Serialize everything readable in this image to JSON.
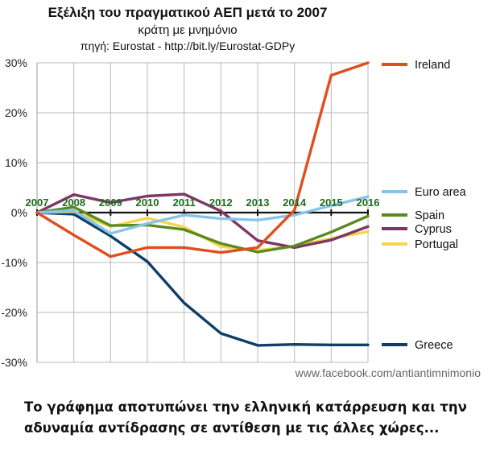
{
  "chart_data": {
    "type": "line",
    "title": "Εξέλιξη του πραγματικού ΑΕΠ μετά το 2007",
    "subtitle": "κράτη με μνημόνιο",
    "source": "πηγή: Eurostat - http://bit.ly/Eurostat-GDPy",
    "watermark": "www.facebook.com/antiantimnimonio",
    "xlabel": "",
    "ylabel": "",
    "x": [
      "2007",
      "2008",
      "2009",
      "2010",
      "2011",
      "2012",
      "2013",
      "2014",
      "2015",
      "2016"
    ],
    "ylim": [
      -30,
      30
    ],
    "yticks": [
      30,
      20,
      10,
      0,
      -10,
      -20,
      -30
    ],
    "ytick_labels": [
      "30%",
      "20%",
      "10%",
      "0%",
      "-10%",
      "-20%",
      "-30%"
    ],
    "grid": true,
    "legend_position": "right",
    "series": [
      {
        "name": "Ireland",
        "color": "#e04e1f",
        "values": [
          0,
          -4.5,
          -8.8,
          -7,
          -7,
          -8,
          -7,
          0.5,
          27.5,
          30
        ]
      },
      {
        "name": "Euro area",
        "color": "#87c5e8",
        "values": [
          0,
          0.4,
          -4.2,
          -2.2,
          -0.5,
          -1.2,
          -1.5,
          -0.5,
          1.4,
          3.2
        ]
      },
      {
        "name": "Spain",
        "color": "#5a8a1e",
        "values": [
          0,
          1.1,
          -2.6,
          -2.5,
          -3.4,
          -6.2,
          -7.9,
          -6.7,
          -3.9,
          -0.7
        ]
      },
      {
        "name": "Cyprus",
        "color": "#7e3664",
        "values": [
          0,
          3.6,
          2,
          3.3,
          3.7,
          0.3,
          -5.6,
          -7,
          -5.5,
          -2.8
        ]
      },
      {
        "name": "Portugal",
        "color": "#f4d64e",
        "values": [
          0,
          0.2,
          -2.8,
          -1.1,
          -2.9,
          -6.8,
          -7.6,
          -6.7,
          -5.2,
          -3.8
        ]
      },
      {
        "name": "Greece",
        "color": "#0f3e66",
        "values": [
          0,
          -0.3,
          -4.7,
          -9.8,
          -18.1,
          -24.2,
          -26.6,
          -26.4,
          -26.5,
          -26.5
        ]
      }
    ]
  },
  "caption": "Το γράφημα αποτυπώνει την ελληνική κατάρρευση και την αδυναμία αντίδρασης σε αντίθεση με τις άλλες χώρες..."
}
